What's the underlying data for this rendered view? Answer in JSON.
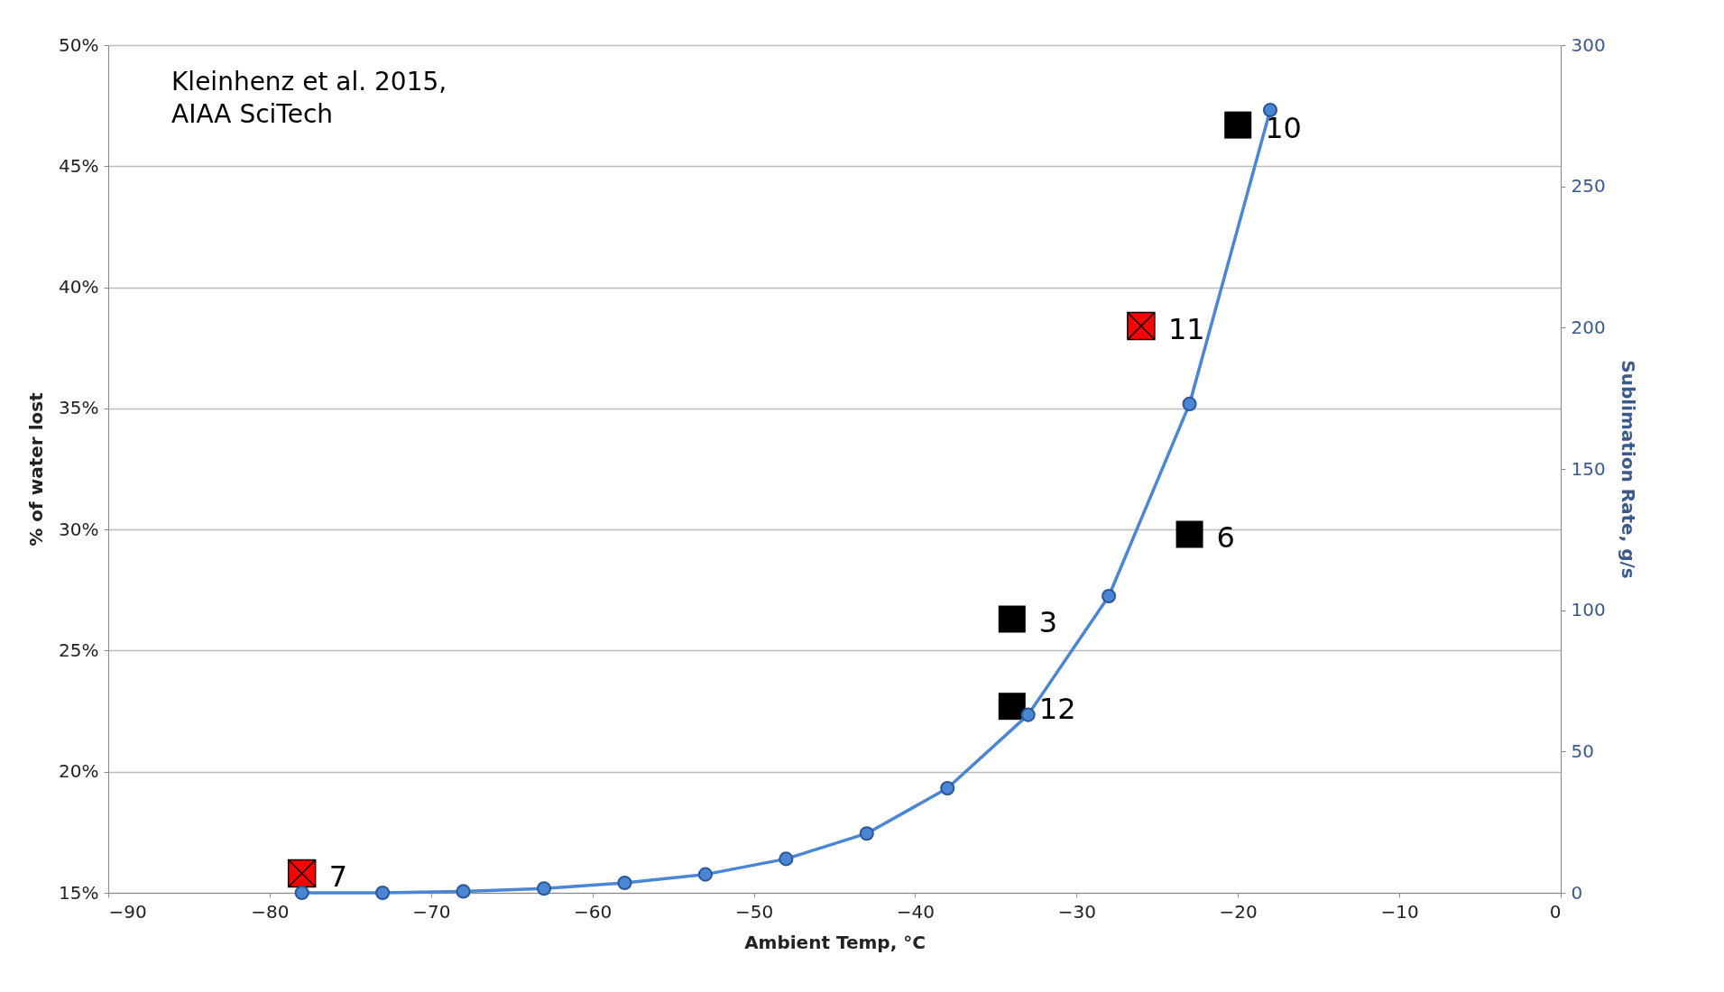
{
  "chart_data": {
    "type": "scatter",
    "xlabel": "Ambient Temp, °C",
    "ylabel": "% of water lost",
    "y2label": "Sublimation Rate, g/s",
    "xlim": [
      -90,
      0
    ],
    "xticks": [
      -90,
      -80,
      -70,
      -60,
      -50,
      -40,
      -30,
      -20,
      -10,
      0
    ],
    "ylim": [
      15,
      50
    ],
    "yticks": [
      {
        "value": 15,
        "label": "15%"
      },
      {
        "value": 20,
        "label": "20%"
      },
      {
        "value": 25,
        "label": "25%"
      },
      {
        "value": 30,
        "label": "30%"
      },
      {
        "value": 35,
        "label": "35%"
      },
      {
        "value": 40,
        "label": "40%"
      },
      {
        "value": 45,
        "label": "45%"
      },
      {
        "value": 50,
        "label": "50%"
      }
    ],
    "y2lim": [
      0,
      300
    ],
    "y2ticks": [
      0,
      50,
      100,
      150,
      200,
      250,
      300
    ],
    "grid": "y",
    "series": [
      {
        "type": "line",
        "axis": "y2",
        "color": "#4a86d4",
        "marker": "circle",
        "x": [
          -78,
          -73,
          -68,
          -63,
          -58,
          -53,
          -48,
          -43,
          -38,
          -33,
          -28,
          -23,
          -18
        ],
        "values": [
          0,
          0,
          0.5,
          1.5,
          3.5,
          6.5,
          12,
          21,
          37,
          63,
          105,
          173,
          277
        ]
      },
      {
        "color": "#000000",
        "marker": "square",
        "x": [
          -34,
          -34,
          -23,
          -20
        ],
        "values": [
          22.7,
          26.3,
          29.8,
          46.7
        ]
      },
      {
        "color": "#ff0000",
        "marker": "cross",
        "x": [
          -78,
          -26
        ],
        "values": [
          15.8,
          38.4
        ]
      }
    ],
    "annotations": [
      "Kleinhenz et al. 2015,\nAIAA SciTech",
      {
        "text": "7",
        "x": -78,
        "y": 15.8
      },
      {
        "text": "12",
        "x": -34,
        "y": 22.7
      },
      {
        "text": "3",
        "x": -34,
        "y": 26.3
      },
      {
        "text": "6",
        "x": -23,
        "y": 29.8
      },
      {
        "text": "11",
        "x": -26,
        "y": 38.4
      },
      {
        "text": "10",
        "x": -20,
        "y": 46.7
      }
    ]
  }
}
